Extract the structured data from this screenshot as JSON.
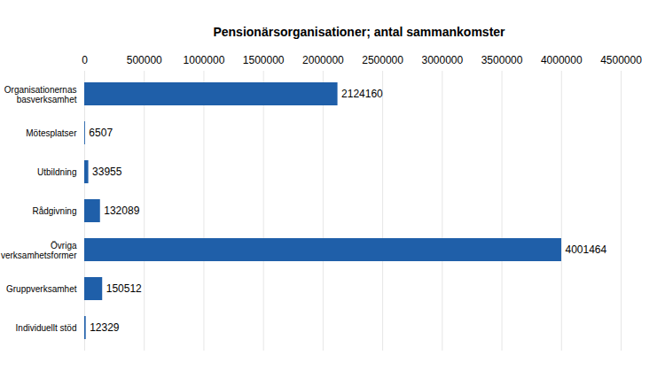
{
  "chart_data": {
    "type": "bar",
    "orientation": "horizontal",
    "title": "Pensionärsorganisationer; antal sammankomster",
    "categories": [
      "Organisationernas basverksamhet",
      "Mötesplatser",
      "Utbildning",
      "Rådgivning",
      "Övriga verksamhetsformer",
      "Gruppverksamhet",
      "Individuellt stöd"
    ],
    "values": [
      2124160,
      6507,
      33955,
      132089,
      4001464,
      150512,
      12329
    ],
    "color": "#1f5fa9",
    "xlim": [
      0,
      4500000
    ],
    "xticks": [
      0,
      500000,
      1000000,
      1500000,
      2000000,
      2500000,
      3000000,
      3500000,
      4000000,
      4500000
    ],
    "grid": true,
    "data_labels": true
  }
}
